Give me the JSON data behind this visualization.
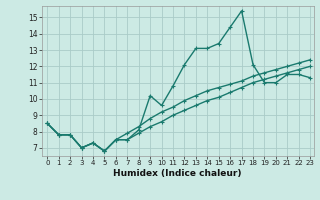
{
  "xlabel": "Humidex (Indice chaleur)",
  "background_color": "#cceae4",
  "grid_color": "#aaccc8",
  "line_color": "#1a7a6e",
  "x_min": -0.5,
  "x_max": 23.3,
  "y_min": 6.5,
  "y_max": 15.7,
  "yticks": [
    7,
    8,
    9,
    10,
    11,
    12,
    13,
    14,
    15
  ],
  "xticks": [
    0,
    1,
    2,
    3,
    4,
    5,
    6,
    7,
    8,
    9,
    10,
    11,
    12,
    13,
    14,
    15,
    16,
    17,
    18,
    19,
    20,
    21,
    22,
    23
  ],
  "line1_x": [
    0,
    1,
    2,
    3,
    4,
    5,
    6,
    7,
    8,
    9,
    10,
    11,
    12,
    13,
    14,
    15,
    16,
    17,
    18,
    19,
    20,
    21,
    22,
    23
  ],
  "line1_y": [
    8.5,
    7.8,
    7.8,
    7.0,
    7.3,
    6.8,
    7.5,
    7.5,
    8.1,
    10.2,
    9.6,
    10.8,
    12.1,
    13.1,
    13.1,
    13.4,
    14.4,
    15.4,
    12.1,
    11.0,
    11.0,
    11.5,
    11.5,
    11.3
  ],
  "line2_x": [
    0,
    1,
    2,
    3,
    4,
    5,
    6,
    7,
    8,
    9,
    10,
    11,
    12,
    13,
    14,
    15,
    16,
    17,
    18,
    19,
    20,
    21,
    22,
    23
  ],
  "line2_y": [
    8.5,
    7.8,
    7.8,
    7.0,
    7.3,
    6.8,
    7.5,
    7.9,
    8.3,
    8.8,
    9.2,
    9.5,
    9.9,
    10.2,
    10.5,
    10.7,
    10.9,
    11.1,
    11.4,
    11.6,
    11.8,
    12.0,
    12.2,
    12.4
  ],
  "line3_x": [
    0,
    1,
    2,
    3,
    4,
    5,
    6,
    7,
    8,
    9,
    10,
    11,
    12,
    13,
    14,
    15,
    16,
    17,
    18,
    19,
    20,
    21,
    22,
    23
  ],
  "line3_y": [
    8.5,
    7.8,
    7.8,
    7.0,
    7.3,
    6.8,
    7.5,
    7.5,
    7.9,
    8.3,
    8.6,
    9.0,
    9.3,
    9.6,
    9.9,
    10.1,
    10.4,
    10.7,
    11.0,
    11.2,
    11.4,
    11.6,
    11.8,
    12.0
  ],
  "marker_size": 3,
  "line_width": 1.0
}
